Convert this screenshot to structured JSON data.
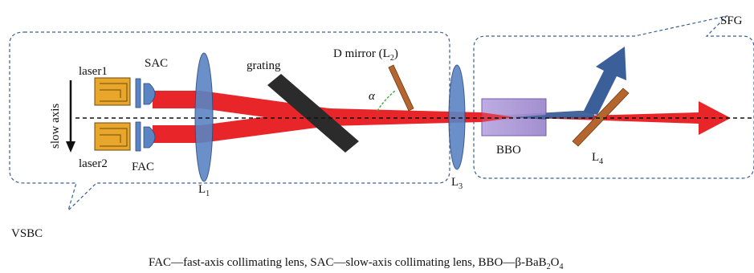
{
  "labels": {
    "laser1": "laser1",
    "laser2": "laser2",
    "sac": "SAC",
    "fac": "FAC",
    "slow_axis": "slow axis",
    "grating": "grating",
    "d_mirror": "D mirror (L",
    "d_mirror_sub": "2",
    "d_mirror_end": ")",
    "alpha": "α",
    "l1": "L",
    "l1_sub": "1",
    "l3": "L",
    "l3_sub": "3",
    "l4": "L",
    "l4_sub": "4",
    "bbo": "BBO",
    "vsbc": "VSBC",
    "sfg": "SFG"
  },
  "caption": {
    "main": "FAC—fast-axis collimating lens, SAC—slow-axis collimating lens, BBO—β-BaB",
    "sub1": "2",
    "mid": "O",
    "sub2": "4"
  },
  "colors": {
    "beam_red": "#e8262a",
    "beam_blue": "#3b5f99",
    "lens_blue": "#5b84c4",
    "laser_gold": "#e8a62a",
    "grating": "#2b2b2b",
    "mirror": "#b5652e",
    "bbo": "#a996d4",
    "dash_box": "#3a5f93"
  }
}
